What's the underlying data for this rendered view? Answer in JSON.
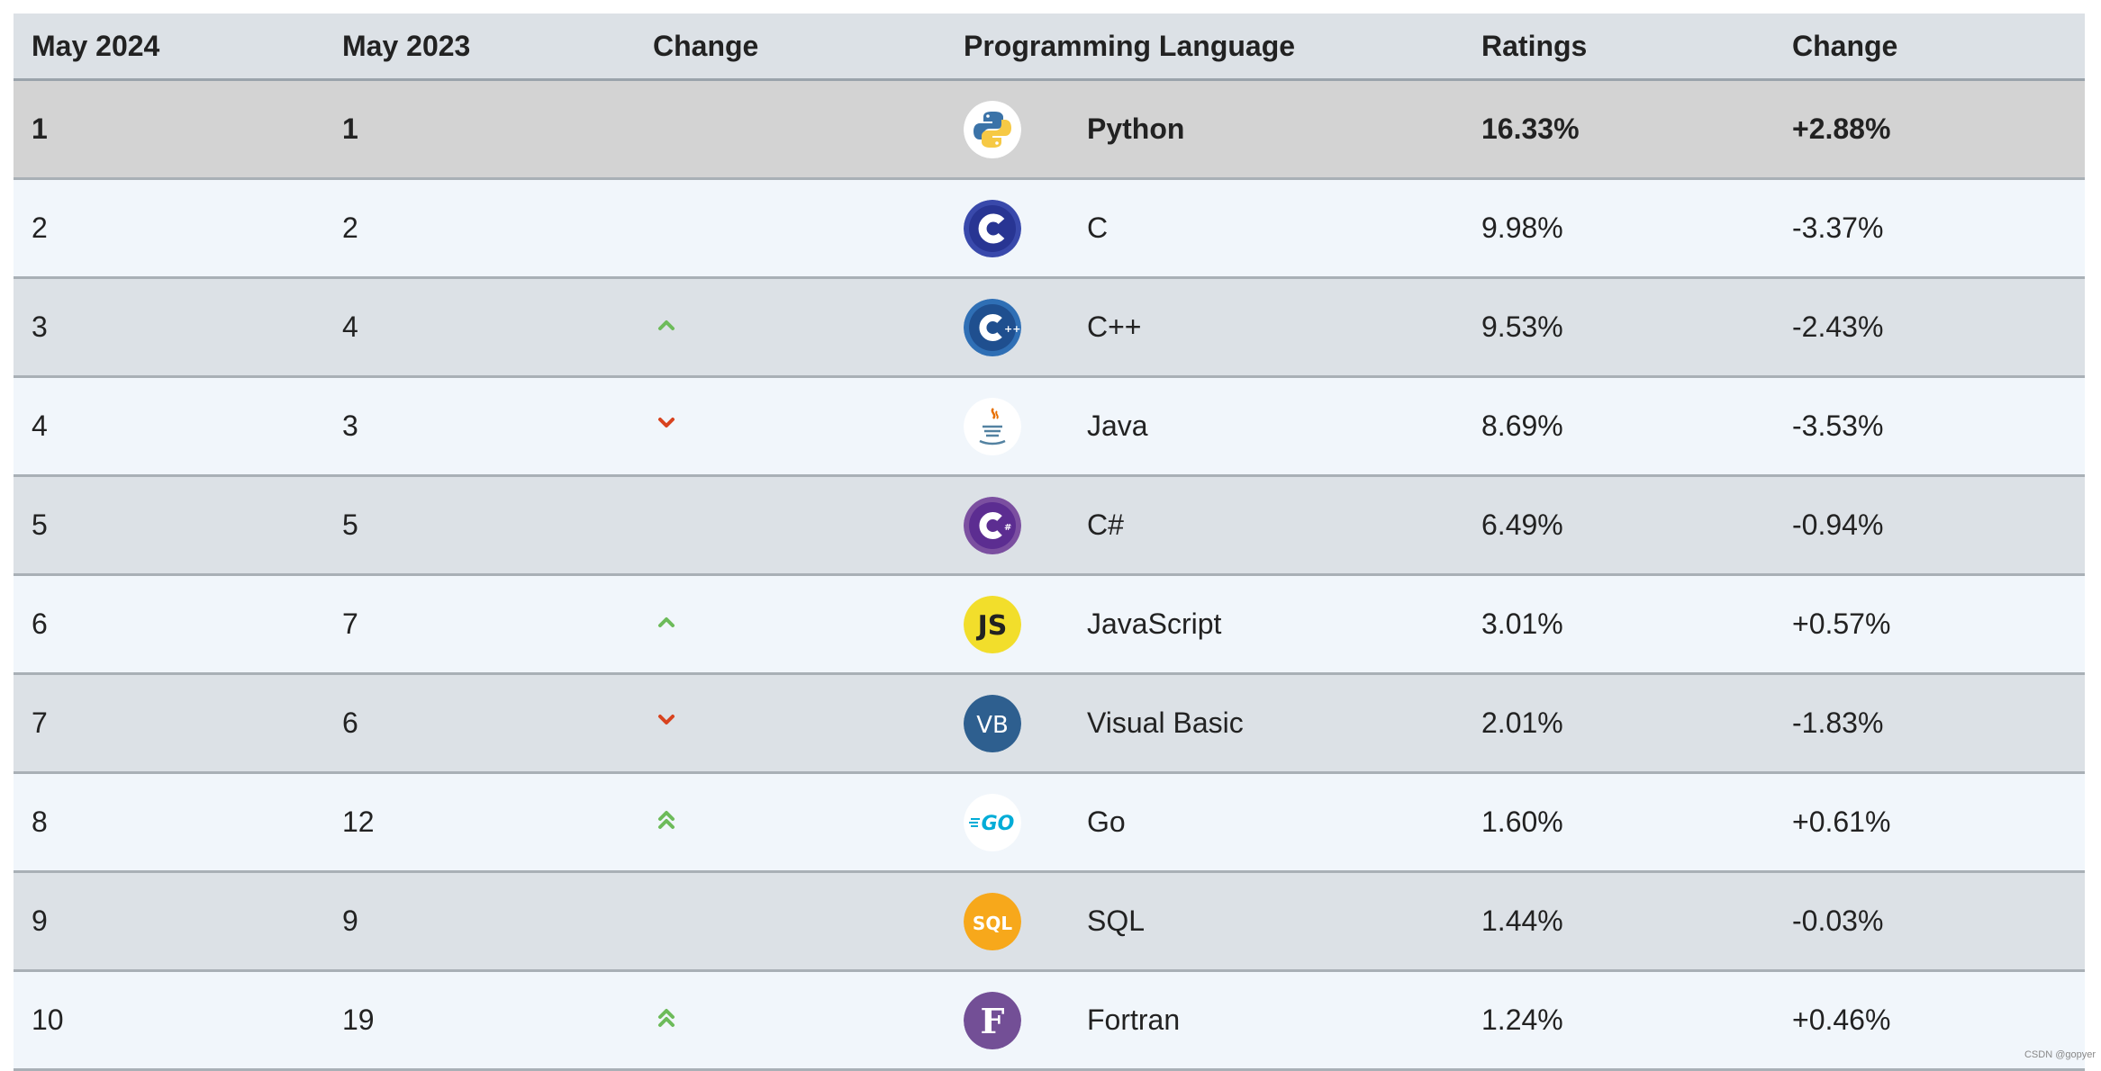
{
  "header": {
    "col1": "May 2024",
    "col2": "May 2023",
    "col3": "Change",
    "col4": "Programming Language",
    "col5": "Ratings",
    "col6": "Change"
  },
  "rows": [
    {
      "rank": "1",
      "prev": "1",
      "trend": "none",
      "lang": "Python",
      "logo": "python-logo-icon",
      "rating": "16.33%",
      "change": "+2.88%"
    },
    {
      "rank": "2",
      "prev": "2",
      "trend": "none",
      "lang": "C",
      "logo": "c-logo-icon",
      "rating": "9.98%",
      "change": "-3.37%"
    },
    {
      "rank": "3",
      "prev": "4",
      "trend": "up",
      "lang": "C++",
      "logo": "cpp-logo-icon",
      "rating": "9.53%",
      "change": "-2.43%"
    },
    {
      "rank": "4",
      "prev": "3",
      "trend": "down",
      "lang": "Java",
      "logo": "java-logo-icon",
      "rating": "8.69%",
      "change": "-3.53%"
    },
    {
      "rank": "5",
      "prev": "5",
      "trend": "none",
      "lang": "C#",
      "logo": "csharp-logo-icon",
      "rating": "6.49%",
      "change": "-0.94%"
    },
    {
      "rank": "6",
      "prev": "7",
      "trend": "up",
      "lang": "JavaScript",
      "logo": "javascript-logo-icon",
      "rating": "3.01%",
      "change": "+0.57%"
    },
    {
      "rank": "7",
      "prev": "6",
      "trend": "down",
      "lang": "Visual Basic",
      "logo": "visual-basic-logo-icon",
      "rating": "2.01%",
      "change": "-1.83%"
    },
    {
      "rank": "8",
      "prev": "12",
      "trend": "double-up",
      "lang": "Go",
      "logo": "go-logo-icon",
      "rating": "1.60%",
      "change": "+0.61%"
    },
    {
      "rank": "9",
      "prev": "9",
      "trend": "none",
      "lang": "SQL",
      "logo": "sql-logo-icon",
      "rating": "1.44%",
      "change": "-0.03%"
    },
    {
      "rank": "10",
      "prev": "19",
      "trend": "double-up",
      "lang": "Fortran",
      "logo": "fortran-logo-icon",
      "rating": "1.24%",
      "change": "+0.46%"
    }
  ],
  "logo_text": {
    "js": "JS",
    "vb": "VB",
    "go": "GO",
    "sql": "SQL",
    "fortran": "F"
  },
  "colors": {
    "up": "#6dbb5a",
    "down": "#d8431f",
    "header_bg": "#dce1e6",
    "row_light": "#f1f6fb",
    "row_dark": "#dce1e6",
    "row_top": "#d3d3d3"
  },
  "watermark": "CSDN @gopyer"
}
